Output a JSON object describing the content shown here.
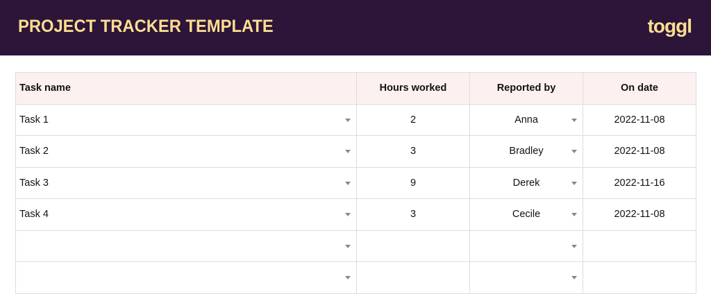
{
  "header": {
    "title": "PROJECT TRACKER TEMPLATE",
    "logo": "toggl",
    "background": "#2c1539",
    "accent": "#ffde91"
  },
  "table": {
    "columns": [
      "Task name",
      "Hours worked",
      "Reported by",
      "On date"
    ],
    "rows": [
      {
        "task": "Task 1",
        "hours": "2",
        "reporter": "Anna",
        "date": "2022-11-08"
      },
      {
        "task": "Task 2",
        "hours": "3",
        "reporter": "Bradley",
        "date": "2022-11-08"
      },
      {
        "task": "Task 3",
        "hours": "9",
        "reporter": "Derek",
        "date": "2022-11-16"
      },
      {
        "task": "Task 4",
        "hours": "3",
        "reporter": "Cecile",
        "date": "2022-11-08"
      },
      {
        "task": "",
        "hours": "",
        "reporter": "",
        "date": ""
      },
      {
        "task": "",
        "hours": "",
        "reporter": "",
        "date": ""
      }
    ]
  }
}
